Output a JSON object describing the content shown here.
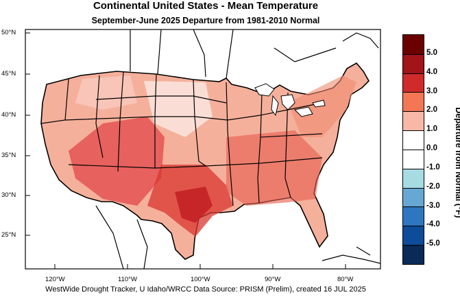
{
  "header": {
    "title": "Continental United States - Mean Temperature",
    "subtitle": "September-June 2025  Departure from 1981-2010 Normal"
  },
  "map": {
    "lat_labels": [
      "50°N",
      "45°N",
      "40°N",
      "35°N",
      "30°N",
      "25°N"
    ],
    "lon_labels": [
      "120°W",
      "110°W",
      "100°W",
      "90°W",
      "80°W"
    ]
  },
  "legend": {
    "title": "Departure from Normal (°F)",
    "labels": [
      "5.0",
      "4.0",
      "3.0",
      "2.0",
      "1.0",
      "0.0",
      "-1.0",
      "-2.0",
      "-3.0",
      "-4.0",
      "-5.0"
    ],
    "colors": [
      "#6a0000",
      "#a11417",
      "#d02b2b",
      "#f37755",
      "#f9b8a7",
      "#ffffff",
      "#ffffff",
      "#a6dbe2",
      "#67a7d4",
      "#2e76bf",
      "#0d4c98",
      "#0a2a58"
    ]
  },
  "footer": {
    "credit": "WestWide Drought Tracker, U Idaho/WRCC Data Source: PRISM (Prelim), created 16 JUL 2025"
  }
}
